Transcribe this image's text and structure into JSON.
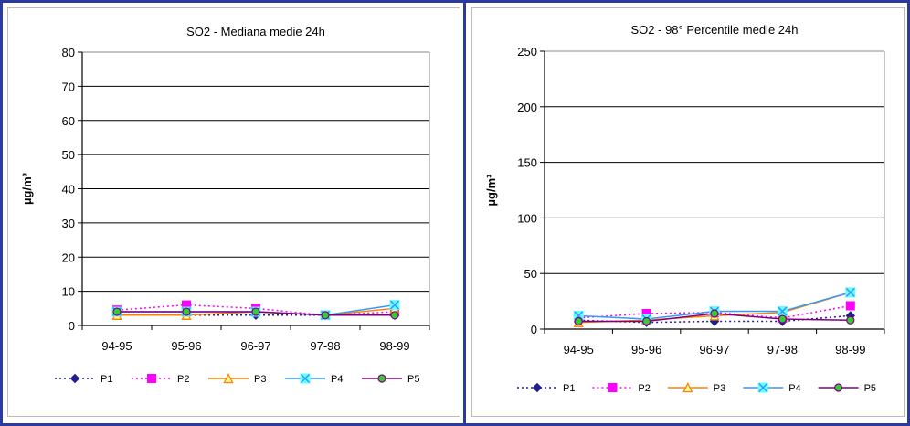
{
  "chart_data": [
    {
      "type": "line",
      "title": "SO2 - Mediana medie 24h",
      "ylabel": "µg/m³",
      "xlabel": "",
      "categories": [
        "94-95",
        "95-96",
        "96-97",
        "97-98",
        "98-99"
      ],
      "ylim": [
        0,
        80
      ],
      "yticks": [
        0,
        10,
        20,
        30,
        40,
        50,
        60,
        70,
        80
      ],
      "grid": true,
      "legend_position": "bottom",
      "series": [
        {
          "name": "P1",
          "values": [
            3,
            3,
            3,
            3,
            3
          ],
          "color": "#1f1f8f",
          "dash": "2,3",
          "marker": "diamond"
        },
        {
          "name": "P2",
          "values": [
            4.5,
            6,
            5,
            3,
            4
          ],
          "color": "#ff00ff",
          "dash": "2,3",
          "marker": "square"
        },
        {
          "name": "P3",
          "values": [
            3,
            3,
            4,
            3,
            5
          ],
          "color": "#ff8000",
          "dash": "",
          "marker": "triangle"
        },
        {
          "name": "P4",
          "values": [
            4,
            4,
            4,
            3,
            6
          ],
          "color": "#3399ff",
          "dash": "",
          "marker": "x"
        },
        {
          "name": "P5",
          "values": [
            4,
            4,
            4,
            3,
            3
          ],
          "color": "#800080",
          "dash": "",
          "marker": "circle"
        }
      ]
    },
    {
      "type": "line",
      "title": "SO2 - 98° Percentile medie 24h",
      "ylabel": "µg/m³",
      "xlabel": "",
      "categories": [
        "94-95",
        "95-96",
        "96-97",
        "97-98",
        "98-99"
      ],
      "ylim": [
        0,
        250
      ],
      "yticks": [
        0,
        50,
        100,
        150,
        200,
        250
      ],
      "grid": true,
      "legend_position": "bottom",
      "series": [
        {
          "name": "P1",
          "values": [
            8,
            6,
            7,
            7,
            12
          ],
          "color": "#1f1f8f",
          "dash": "2,3",
          "marker": "diamond"
        },
        {
          "name": "P2",
          "values": [
            10,
            14,
            15,
            10,
            21
          ],
          "color": "#ff00ff",
          "dash": "2,3",
          "marker": "square"
        },
        {
          "name": "P3",
          "values": [
            6,
            8,
            12,
            15,
            33
          ],
          "color": "#ff8000",
          "dash": "",
          "marker": "triangle"
        },
        {
          "name": "P4",
          "values": [
            12,
            9,
            16,
            16,
            33
          ],
          "color": "#3399ff",
          "dash": "",
          "marker": "x"
        },
        {
          "name": "P5",
          "values": [
            7,
            7,
            14,
            9,
            8
          ],
          "color": "#800080",
          "dash": "",
          "marker": "circle"
        }
      ]
    }
  ]
}
